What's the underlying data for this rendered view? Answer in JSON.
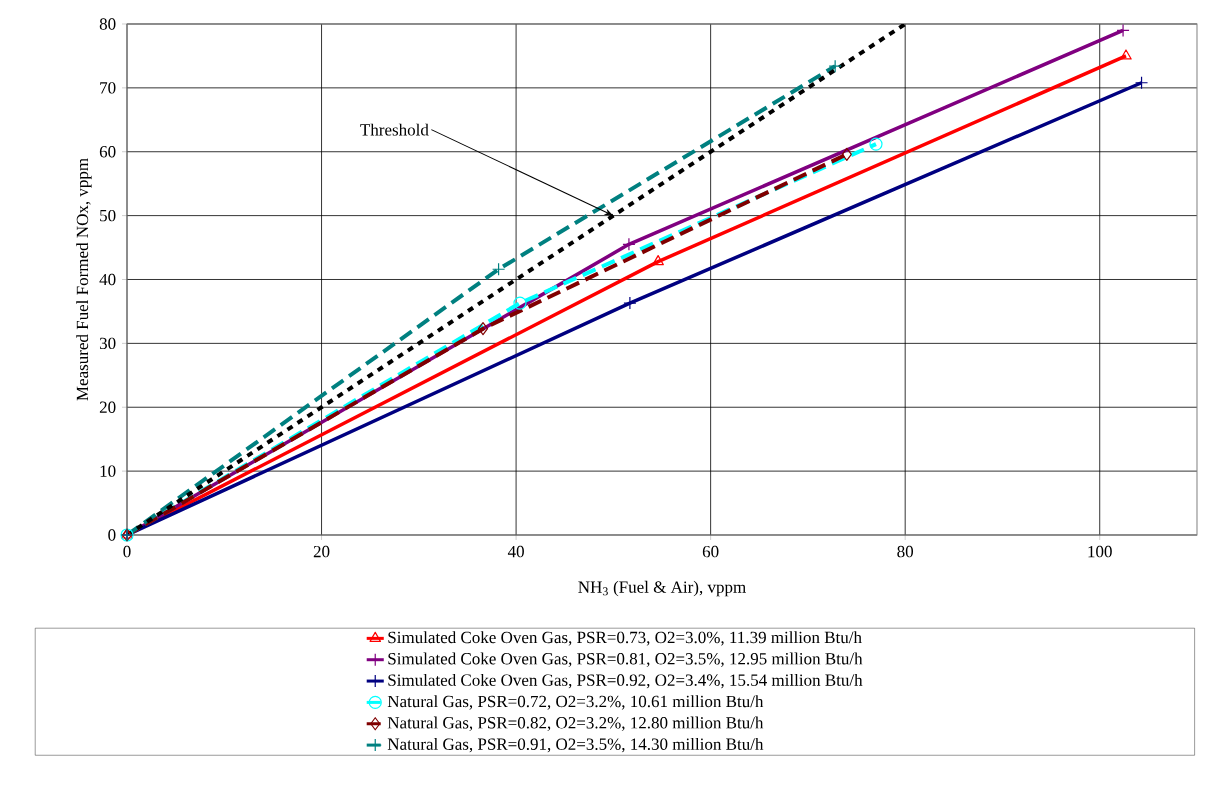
{
  "chart_data": {
    "type": "line",
    "xlabel": "NH$_{3}$ (Fuel & Air), vppm",
    "ylabel": "Measured Fuel Formed NOx, vppm",
    "xlim": [
      0,
      110
    ],
    "xticks": [
      0,
      20,
      40,
      60,
      80,
      100
    ],
    "ylim": [
      0,
      80
    ],
    "yticks": [
      0,
      10,
      20,
      30,
      40,
      50,
      60,
      70,
      80
    ],
    "grid": true,
    "legend": "bottom",
    "annotations": [
      {
        "text": "Threshold",
        "x": 50,
        "y": 50
      }
    ],
    "series": [
      {
        "name": "Simulated Coke Oven Gas, PSR=0.73, O2=3.0%, 11.39 million Btu/h",
        "color": "#ff0000",
        "marker": "triangle",
        "line_style": "solid",
        "x": [
          0,
          54.6,
          102.7
        ],
        "values": [
          0,
          42.8,
          75.0
        ]
      },
      {
        "name": "Simulated Coke Oven Gas, PSR=0.81, O2=3.5%, 12.95 million Btu/h",
        "color": "#800080",
        "marker": "cross",
        "line_style": "solid",
        "x": [
          0,
          51.6,
          102.4
        ],
        "values": [
          0,
          45.5,
          79.0
        ]
      },
      {
        "name": "Simulated Coke Oven Gas, PSR=0.92, O2=3.4%, 15.54 million Btu/h",
        "color": "#000080",
        "marker": "cross",
        "line_style": "solid",
        "x": [
          0,
          51.7,
          104.3
        ],
        "values": [
          0,
          36.3,
          70.8
        ]
      },
      {
        "name": "Natural Gas, PSR=0.72, O2=3.2%, 10.61 million Btu/h",
        "color": "#00ffff",
        "marker": "circle",
        "line_style": "dashed",
        "x": [
          0,
          40.4,
          77.0
        ],
        "values": [
          0,
          36.3,
          61.2
        ]
      },
      {
        "name": "Natural Gas, PSR=0.82, O2=3.2%, 12.80 million Btu/h",
        "color": "#800000",
        "marker": "diamond",
        "line_style": "dashed",
        "x": [
          0,
          36.6,
          74.0
        ],
        "values": [
          0,
          32.3,
          59.6
        ]
      },
      {
        "name": "Natural Gas, PSR=0.91, O2=3.5%, 14.30 million Btu/h",
        "color": "#008080",
        "marker": "cross",
        "line_style": "dashed",
        "x": [
          0,
          38.2,
          72.8
        ],
        "values": [
          0,
          41.6,
          73.4
        ]
      },
      {
        "color": "#000000",
        "marker": "none",
        "line_style": "dotted",
        "x": [
          0,
          80
        ],
        "values": [
          0,
          80
        ]
      }
    ]
  }
}
